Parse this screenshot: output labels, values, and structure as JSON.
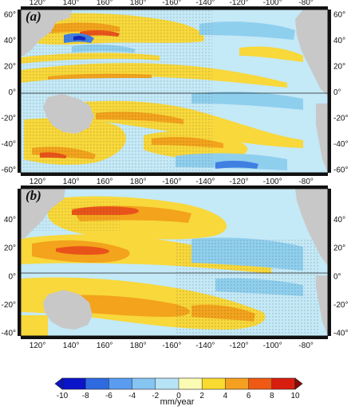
{
  "panels": [
    {
      "label": "(a)",
      "lon_ticks": [
        "120°",
        "140°",
        "160°",
        "180°",
        "-160°",
        "-140°",
        "-120°",
        "-100°",
        "-80°"
      ],
      "lat_ticks_left": [
        "60°",
        "40°",
        "20°",
        "0°",
        "-20°",
        "-40°",
        "-60°"
      ],
      "lat_ticks_right": [
        "60°",
        "40°",
        "20°",
        "0°",
        "-20°",
        "-40°",
        "-60°"
      ],
      "lat_values": [
        60,
        40,
        20,
        0,
        -20,
        -40,
        -60
      ],
      "lat_range": [
        -62,
        64
      ]
    },
    {
      "label": "(b)",
      "lon_ticks": [
        "120°",
        "140°",
        "160°",
        "180°",
        "-160°",
        "-140°",
        "-120°",
        "-100°",
        "-80°"
      ],
      "lat_ticks_left": [
        "40°",
        "20°",
        "0°",
        "-20°",
        "-40°"
      ],
      "lat_ticks_right": [
        "40°",
        "20°",
        "0°",
        "-20°",
        "-40°"
      ],
      "lat_values": [
        40,
        20,
        0,
        -20,
        -40
      ],
      "lat_range": [
        -42,
        62
      ]
    }
  ],
  "lon_values": [
    120,
    140,
    160,
    180,
    200,
    220,
    240,
    260,
    280
  ],
  "lon_range": [
    110,
    293
  ],
  "colorbar": {
    "unit": "mm/year",
    "ticks": [
      "-10",
      "-8",
      "-6",
      "-4",
      "-2",
      "0",
      "2",
      "4",
      "6",
      "8",
      "10"
    ],
    "colors": [
      "#0a14c8",
      "#2f6ae0",
      "#5a9cf0",
      "#86c4f2",
      "#b6e4f6",
      "#fbfbb4",
      "#f8da30",
      "#f4a020",
      "#ee5a14",
      "#d81e10"
    ],
    "end_color": "#8a0a0a"
  },
  "colors": {
    "ocean_base": "#c4e9f7",
    "land": "#c8c8c8",
    "positive": "#f8d83a",
    "positive_strong": "#f3a31c",
    "positive_max": "#e9531a",
    "negative": "#8fcfee",
    "negative_strong": "#3f7fe2",
    "negative_max": "#1428c0"
  }
}
